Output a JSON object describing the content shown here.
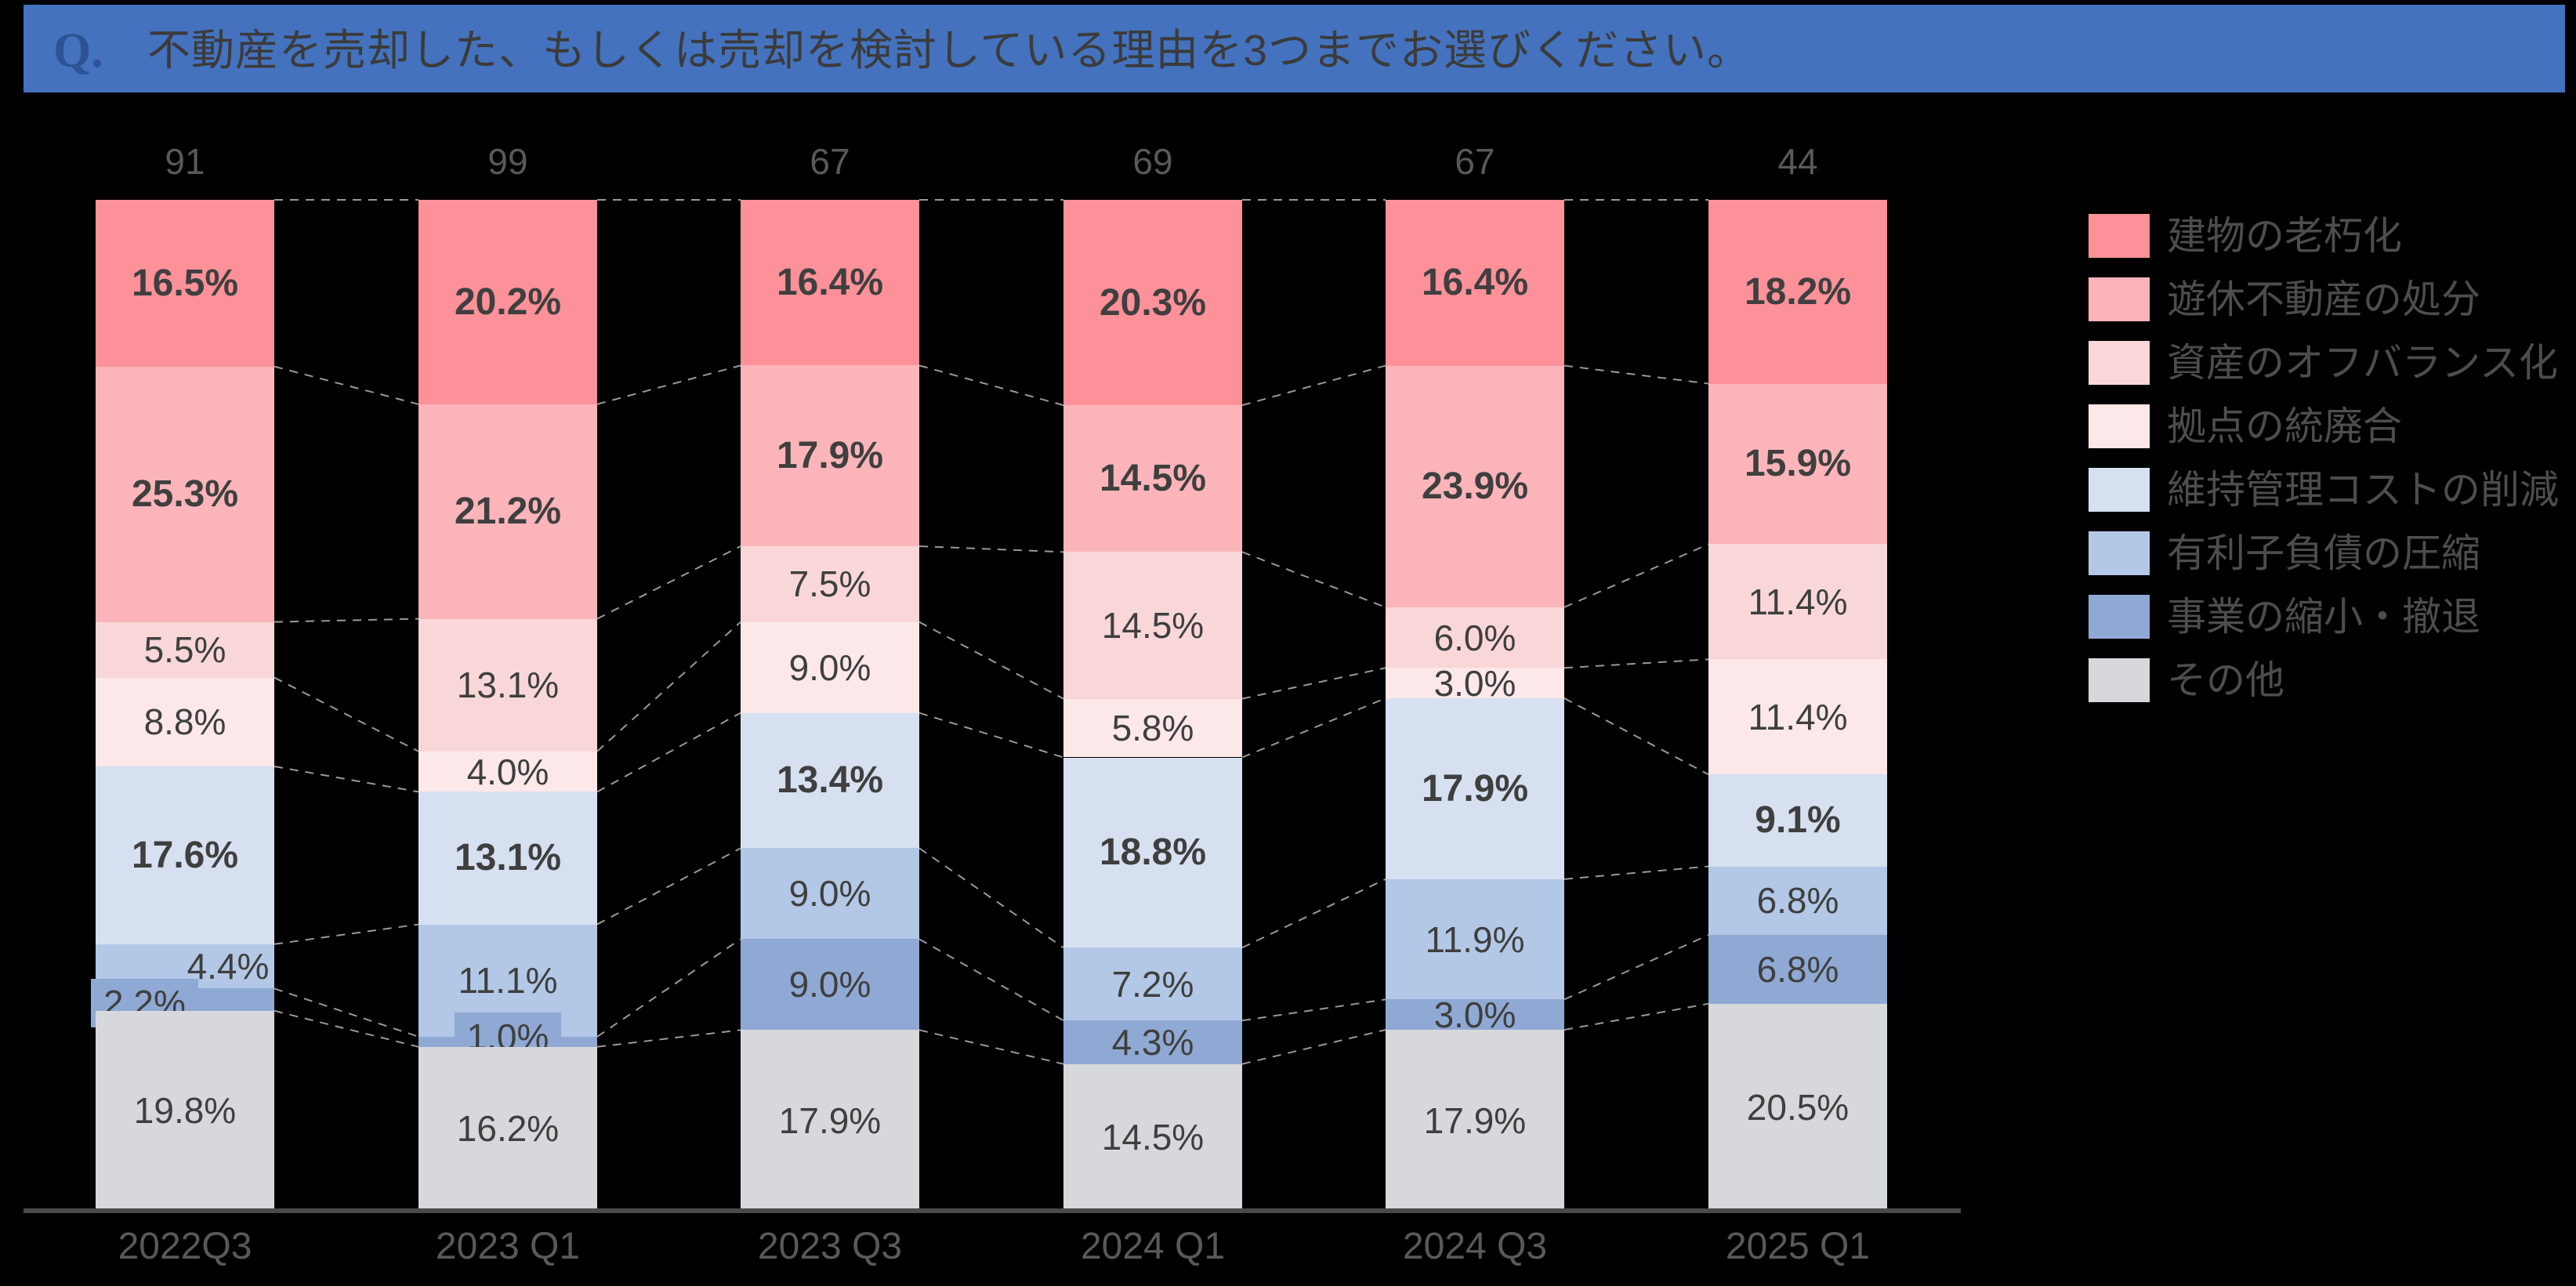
{
  "title": {
    "prefix": "Q.",
    "text": "不動産を売却した、もしくは売却を検討している理由を3つまでお選びください。"
  },
  "colors": {
    "banner_bg": "#4472BE",
    "banner_prefix": "#2D5296",
    "banner_text": "#3B3B3B",
    "segment_label": "#3F3F3F",
    "total_label": "#595959",
    "x_label": "#595959",
    "legend_text": "#4D4D4D",
    "axis_line": "#4A4A4A",
    "connector_line": "#999999",
    "background": "#000000"
  },
  "chart_data": {
    "type": "bar",
    "variant": "stacked-100-percent-column",
    "grid": false,
    "legend_position": "right",
    "connector_lines": true,
    "value_suffix": "%",
    "categories": [
      "2022Q3",
      "2023 Q1",
      "2023 Q3",
      "2024 Q1",
      "2024 Q3",
      "2025 Q1"
    ],
    "totals": [
      91,
      99,
      67,
      69,
      67,
      44
    ],
    "series": [
      {
        "name": "建物の老朽化",
        "color": "#FC9199",
        "bold": true,
        "values": [
          16.5,
          20.2,
          16.4,
          20.3,
          16.4,
          18.2
        ]
      },
      {
        "name": "遊休不動産の処分",
        "color": "#FBB5BA",
        "bold": true,
        "values": [
          25.3,
          21.2,
          17.9,
          14.5,
          23.9,
          15.9
        ]
      },
      {
        "name": "資産のオフバランス化",
        "color": "#F9D7D8",
        "bold": false,
        "values": [
          5.5,
          13.1,
          7.5,
          14.5,
          6.0,
          11.4
        ]
      },
      {
        "name": "拠点の統廃合",
        "color": "#FCE8E9",
        "bold": false,
        "values": [
          8.8,
          4.0,
          9.0,
          5.8,
          3.0,
          11.4
        ]
      },
      {
        "name": "維持管理コストの削減",
        "color": "#D7E0F0",
        "bold": true,
        "values": [
          17.6,
          13.1,
          13.4,
          18.8,
          17.9,
          9.1
        ]
      },
      {
        "name": "有利子負債の圧縮",
        "color": "#B3C8E6",
        "bold": false,
        "values": [
          4.4,
          11.1,
          9.0,
          7.2,
          11.9,
          6.8
        ]
      },
      {
        "name": "事業の縮小・撤退",
        "color": "#8FA9D4",
        "bold": false,
        "values": [
          2.2,
          1.0,
          9.0,
          4.3,
          3.0,
          6.8
        ]
      },
      {
        "name": "その他",
        "color": "#D6D8DB",
        "bold": false,
        "values": [
          19.8,
          16.2,
          17.9,
          14.5,
          17.9,
          20.5
        ]
      }
    ]
  }
}
